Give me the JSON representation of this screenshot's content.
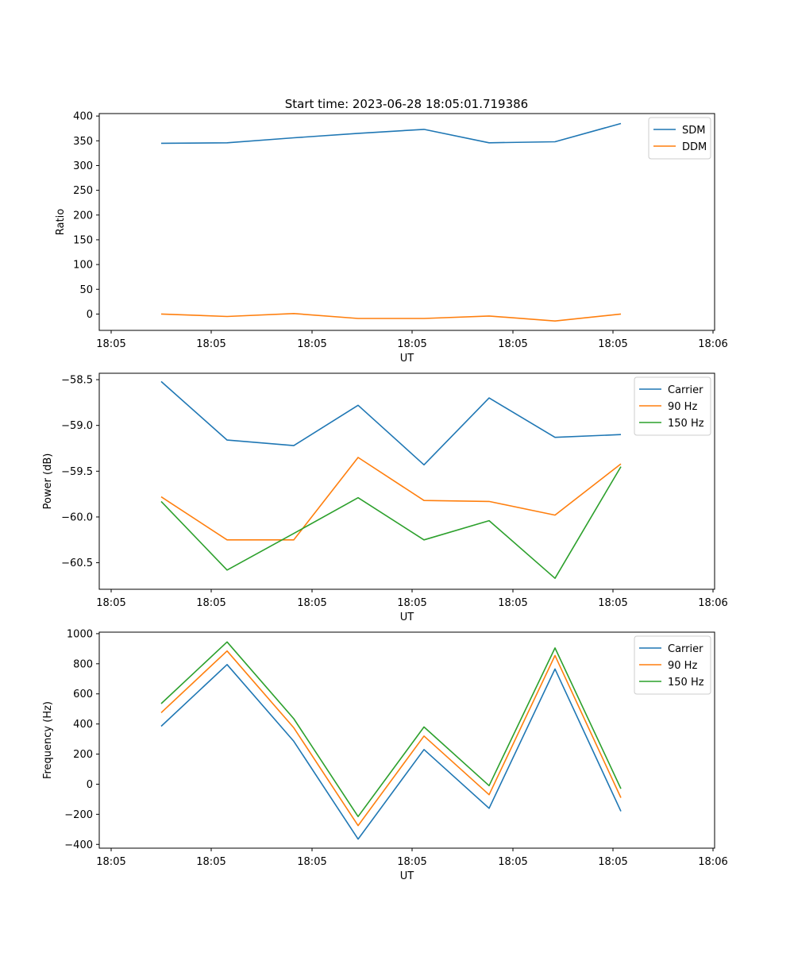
{
  "figure": {
    "title": "Start time: 2023-06-28 18:05:01.719386"
  },
  "chart_data": [
    {
      "type": "line",
      "xlabel": "UT",
      "ylabel": "Ratio",
      "x_tick_labels": [
        "18:05",
        "18:05",
        "18:05",
        "18:05",
        "18:05",
        "18:05",
        "18:06"
      ],
      "ylim": [
        -33,
        405
      ],
      "y_ticks": [
        0,
        50,
        100,
        150,
        200,
        250,
        300,
        350,
        400
      ],
      "legend_position": "top-right",
      "grid": false,
      "series": [
        {
          "name": "SDM",
          "color": "#1f77b4",
          "values": [
            345,
            346,
            356,
            365,
            373,
            346,
            348,
            385
          ]
        },
        {
          "name": "DDM",
          "color": "#ff7f0e",
          "values": [
            0,
            -5,
            1,
            -9,
            -9,
            -4,
            -14,
            0
          ]
        }
      ]
    },
    {
      "type": "line",
      "xlabel": "UT",
      "ylabel": "Power (dB)",
      "x_tick_labels": [
        "18:05",
        "18:05",
        "18:05",
        "18:05",
        "18:05",
        "18:05",
        "18:06"
      ],
      "ylim": [
        -60.79,
        -58.43
      ],
      "y_ticks": [
        -60.5,
        -60.0,
        -59.5,
        -59.0,
        -58.5
      ],
      "y_tick_labels": [
        "−60.5",
        "−60.0",
        "−59.5",
        "−59.0",
        "−58.5"
      ],
      "legend_position": "top-right",
      "grid": false,
      "series": [
        {
          "name": "Carrier",
          "color": "#1f77b4",
          "values": [
            -58.52,
            -59.16,
            -59.22,
            -58.78,
            -59.43,
            -58.7,
            -59.13,
            -59.1
          ]
        },
        {
          "name": "90 Hz",
          "color": "#ff7f0e",
          "values": [
            -59.78,
            -60.25,
            -60.25,
            -59.35,
            -59.82,
            -59.83,
            -59.98,
            -59.42
          ]
        },
        {
          "name": "150 Hz",
          "color": "#2ca02c",
          "values": [
            -59.83,
            -60.58,
            -60.18,
            -59.79,
            -60.25,
            -60.04,
            -60.67,
            -59.45
          ]
        }
      ]
    },
    {
      "type": "line",
      "xlabel": "UT",
      "ylabel": "Frequency (Hz)",
      "x_tick_labels": [
        "18:05",
        "18:05",
        "18:05",
        "18:05",
        "18:05",
        "18:05",
        "18:06"
      ],
      "ylim": [
        -425,
        1010
      ],
      "y_ticks": [
        -400,
        -200,
        0,
        200,
        400,
        600,
        800,
        1000
      ],
      "y_tick_labels": [
        "−400",
        "−200",
        "0",
        "200",
        "400",
        "600",
        "800",
        "1000"
      ],
      "legend_position": "top-right",
      "grid": false,
      "series": [
        {
          "name": "Carrier",
          "color": "#1f77b4",
          "values": [
            385,
            795,
            285,
            -365,
            230,
            -160,
            765,
            -180
          ]
        },
        {
          "name": "90 Hz",
          "color": "#ff7f0e",
          "values": [
            475,
            885,
            375,
            -275,
            320,
            -70,
            855,
            -90
          ]
        },
        {
          "name": "150 Hz",
          "color": "#2ca02c",
          "values": [
            535,
            945,
            435,
            -215,
            380,
            -10,
            905,
            -30
          ]
        }
      ]
    }
  ]
}
